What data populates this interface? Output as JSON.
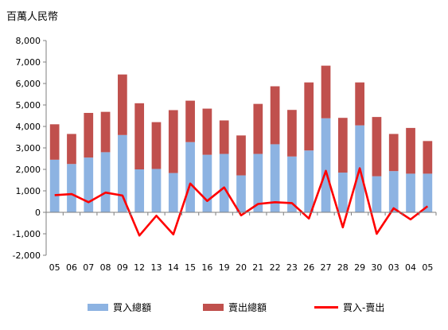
{
  "unit_label": "百萬人民幣",
  "colors": {
    "buy": "#8db3e2",
    "sell": "#c0504d",
    "net": "#ff0000",
    "axis": "#7f7f7f"
  },
  "chart_data": {
    "type": "bar",
    "stacked": true,
    "categories": [
      "05",
      "06",
      "07",
      "08",
      "09",
      "12",
      "13",
      "14",
      "15",
      "16",
      "19",
      "20",
      "21",
      "22",
      "23",
      "26",
      "27",
      "28",
      "29",
      "30",
      "03",
      "04",
      "05"
    ],
    "ylim": [
      -2000,
      8000
    ],
    "yticks": [
      -2000,
      -1000,
      0,
      1000,
      2000,
      3000,
      4000,
      5000,
      6000,
      7000,
      8000
    ],
    "ytick_labels": [
      "-2,000",
      "-1,000",
      "0",
      "1,000",
      "2,000",
      "3,000",
      "4,000",
      "5,000",
      "6,000",
      "7,000",
      "8,000"
    ],
    "grid": false,
    "legend_position": "bottom",
    "series": [
      {
        "name": "買入總額",
        "type": "bar",
        "values": [
          2450,
          2250,
          2550,
          2800,
          3600,
          2000,
          2020,
          1830,
          3270,
          2680,
          2720,
          1720,
          2720,
          3170,
          2600,
          2880,
          4380,
          1850,
          4050,
          1680,
          1920,
          1800,
          1800
        ]
      },
      {
        "name": "賣出總額",
        "type": "bar",
        "values": [
          1650,
          1400,
          2080,
          1880,
          2820,
          3080,
          2180,
          2930,
          1930,
          2150,
          1560,
          1860,
          2330,
          2700,
          2170,
          3170,
          2450,
          2550,
          2000,
          2760,
          1730,
          2130,
          1520
        ]
      },
      {
        "name": "買入-賣出",
        "type": "line",
        "values": [
          800,
          850,
          470,
          920,
          780,
          -1080,
          -160,
          -1030,
          1340,
          530,
          1160,
          -140,
          390,
          470,
          430,
          -290,
          1930,
          -700,
          2050,
          -1000,
          190,
          -330,
          280
        ]
      }
    ]
  }
}
